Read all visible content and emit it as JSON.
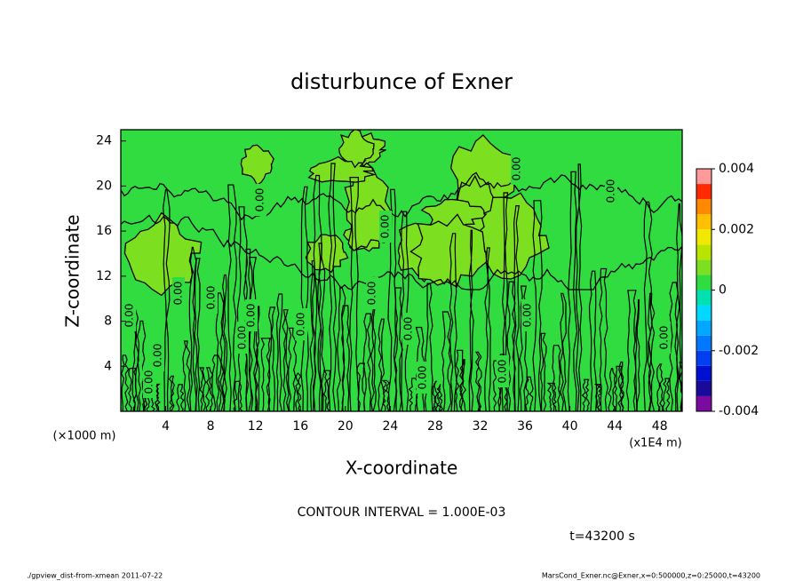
{
  "chart_data": {
    "type": "contour",
    "title": "disturbunce of Exner",
    "x_label": "X-coordinate",
    "y_label": "Z-coordinate",
    "x_unit": "(x1E4 m)",
    "y_unit": "(×1000 m)",
    "xlim": [
      0,
      50
    ],
    "xticks": [
      4,
      8,
      12,
      16,
      20,
      24,
      28,
      32,
      36,
      40,
      44,
      48
    ],
    "ylim": [
      0,
      25
    ],
    "yticks": [
      4,
      8,
      12,
      16,
      20,
      24
    ],
    "contour_level": {
      "value": 0,
      "label": "0.00"
    },
    "annotation": "CONTOUR INTERVAL = 1.000E-03",
    "time_label": "t=43200 s",
    "footer_left": "./gpview_dist-from-xmean  2011-07-22",
    "footer_right": "MarsCond_Exner.nc@Exner,x=0:500000,z=0:25000,t=43200",
    "colorbar": {
      "levels": [
        -0.004,
        -0.0035,
        -0.003,
        -0.0025,
        -0.002,
        -0.0015,
        -0.001,
        -0.0005,
        0,
        0.0005,
        0.001,
        0.0015,
        0.002,
        0.0025,
        0.003,
        0.0035,
        0.004
      ],
      "colors": [
        "#7a0aa0",
        "#1a0a9a",
        "#0010d0",
        "#0040f0",
        "#0078ff",
        "#00a8ff",
        "#00d8ff",
        "#00e0b0",
        "#30dc40",
        "#7ce020",
        "#b8e400",
        "#f0e800",
        "#ffc000",
        "#ff8800",
        "#ff2a00",
        "#ff9a9a"
      ],
      "ticks": [
        0.004,
        0.002,
        0,
        -0.002,
        -0.004
      ]
    }
  }
}
